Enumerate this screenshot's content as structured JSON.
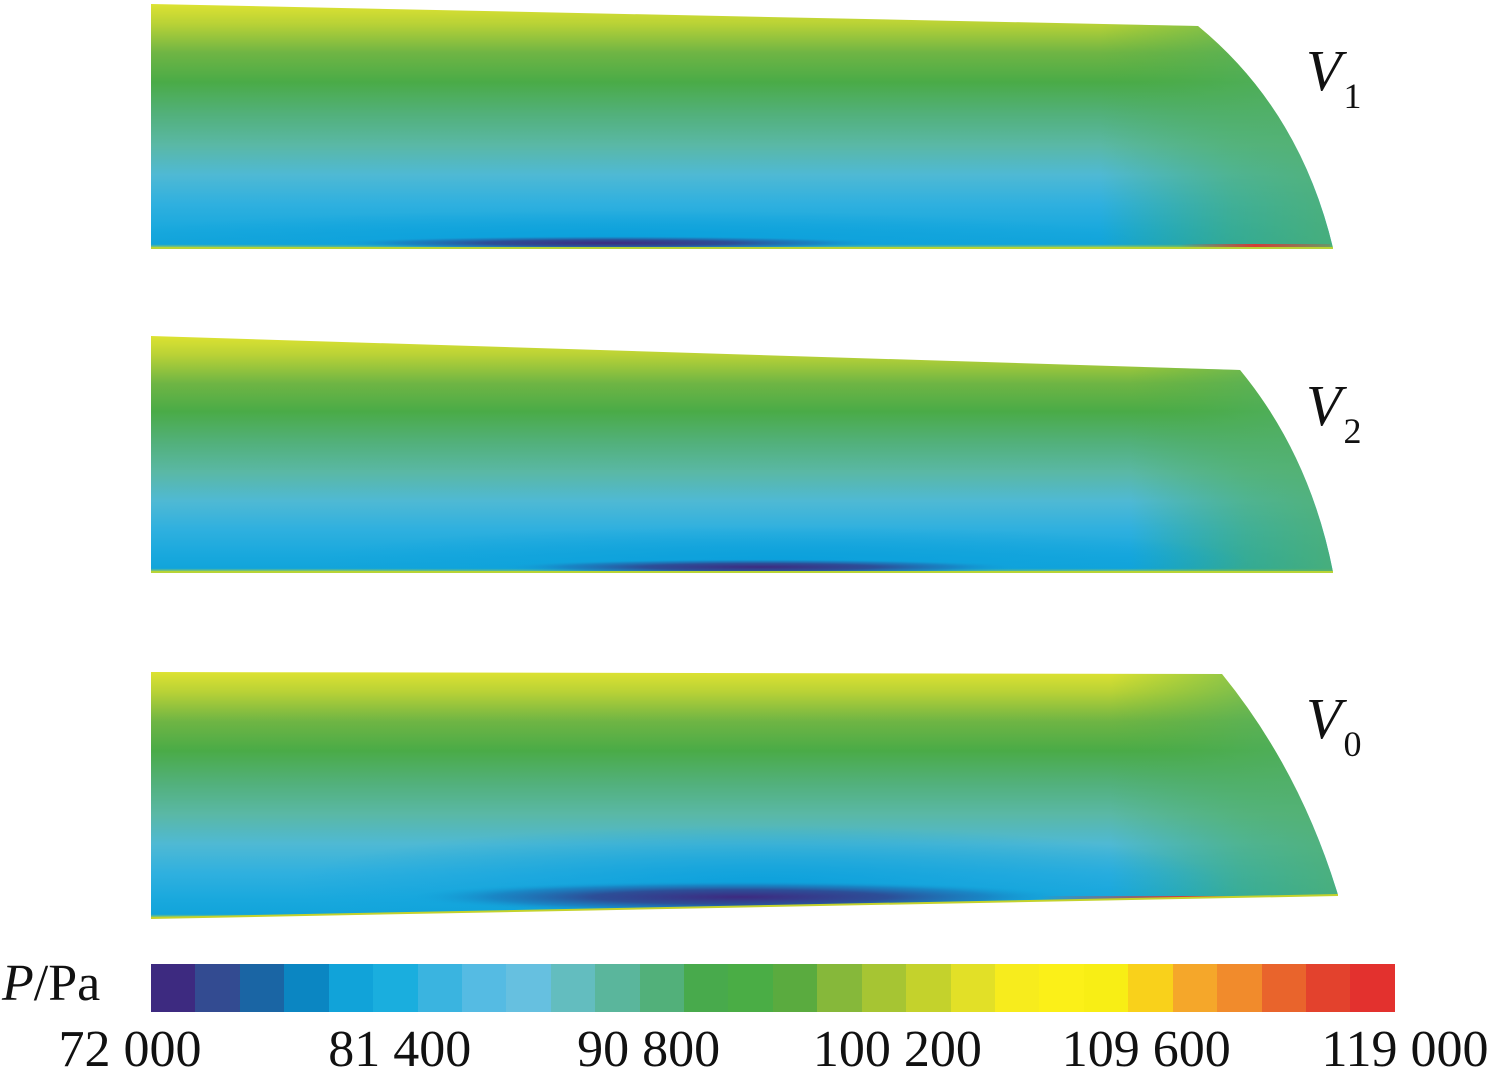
{
  "figure": {
    "panels": [
      {
        "symbol": "V",
        "subscript": "1",
        "low_pressure_core": "thin, near bottom-centre"
      },
      {
        "symbol": "V",
        "subscript": "2",
        "low_pressure_core": "thin, right of centre"
      },
      {
        "symbol": "V",
        "subscript": "0",
        "low_pressure_core": "largest, lower-centre"
      }
    ],
    "colors": {
      "low": "#3d2a80",
      "mid_blue": "#17a7dc",
      "mid_green": "#4ba94a",
      "high_yellow": "#f2e61a",
      "max_red": "#e3312e"
    }
  },
  "legend": {
    "symbol": "P",
    "unit": "/Pa",
    "min": 72000,
    "max": 119000,
    "tick_labels": [
      "72 000",
      "81 400",
      "90 800",
      "100 200",
      "109 600",
      "119 000"
    ],
    "tick_values": [
      72000,
      81400,
      90800,
      100200,
      109600,
      119000
    ],
    "swatches": [
      "#3d2a80",
      "#334b91",
      "#1a65a4",
      "#0b86c2",
      "#11a3d9",
      "#1aaede",
      "#3ab4e0",
      "#55bbe3",
      "#66c0e0",
      "#63bdbf",
      "#5ab69c",
      "#52b07a",
      "#48aa4c",
      "#4aad45",
      "#5aab3f",
      "#86b83a",
      "#a6c533",
      "#c4d22c",
      "#e2e027",
      "#f7ec1d",
      "#fbf018",
      "#f8ee15",
      "#f9d11b",
      "#f5a72a",
      "#f18b2c",
      "#e9642c",
      "#e3422d",
      "#e3312e"
    ]
  }
}
